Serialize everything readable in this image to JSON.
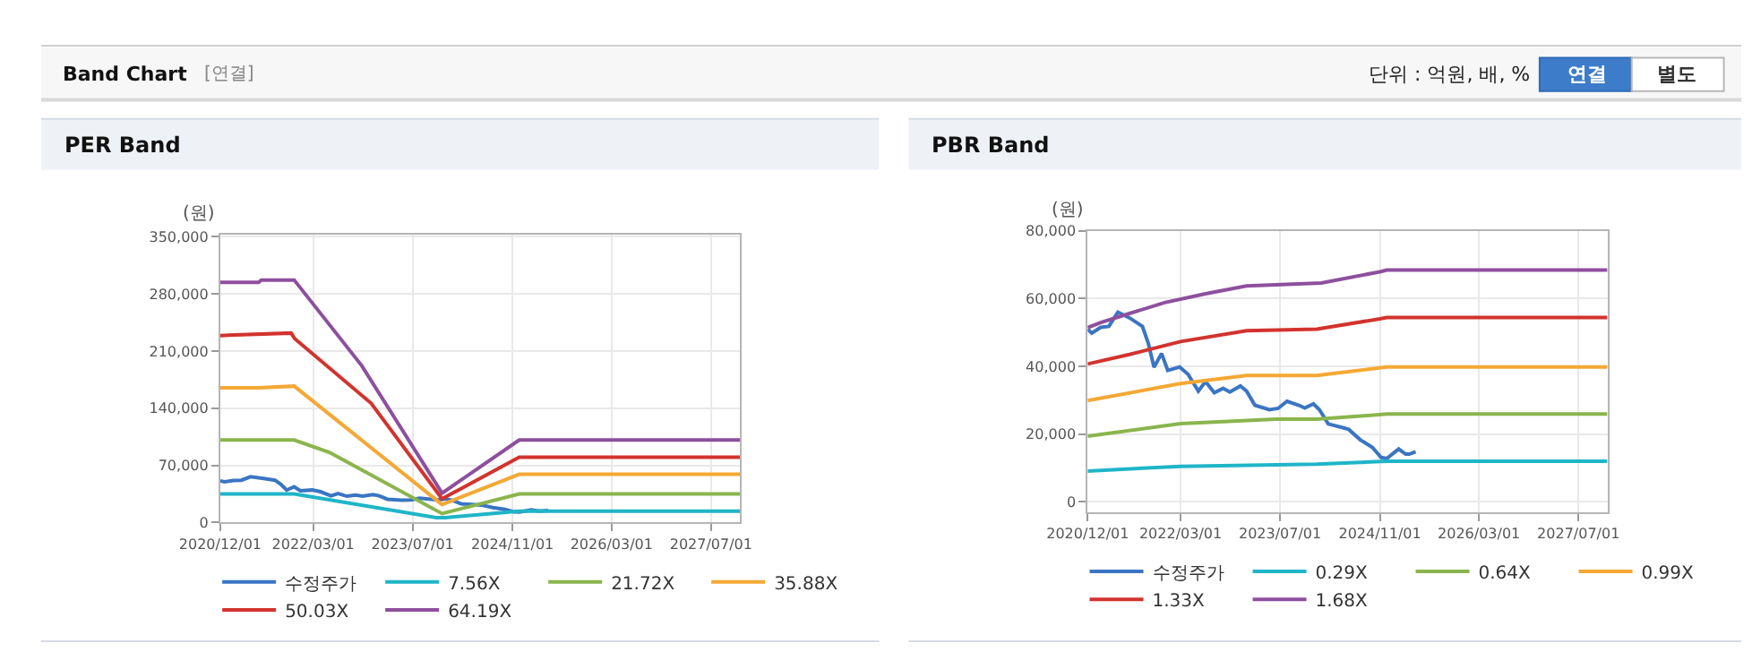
{
  "chart_data": [
    {
      "type": "other",
      "title": "Band Chart",
      "annotations": [
        "[연결]",
        "단위 : 억원, 배, %",
        "연결",
        "별도"
      ]
    },
    {
      "type": "line",
      "title": "PER Band",
      "ylabel": "(원)",
      "grid": true,
      "legend": "bottom",
      "marker": "none",
      "line_style": "solid",
      "xlim": [
        "2020-12-01",
        "2027-11-20"
      ],
      "xticks": [
        {
          "value": "2020-12-01",
          "label": "2020/12/01"
        },
        {
          "value": "2022-03-01",
          "label": "2022/03/01"
        },
        {
          "value": "2023-07-01",
          "label": "2023/07/01"
        },
        {
          "value": "2024-11-01",
          "label": "2024/11/01"
        },
        {
          "value": "2026-03-01",
          "label": "2026/03/01"
        },
        {
          "value": "2027-07-01",
          "label": "2027/07/01"
        }
      ],
      "ylim": [
        0,
        353000
      ],
      "yticks": [
        0,
        {
          "value": 70000,
          "label": "70,000"
        },
        {
          "value": 140000,
          "label": "140,000"
        },
        {
          "value": 210000,
          "label": "210,000"
        },
        {
          "value": 280000,
          "label": "280,000"
        },
        {
          "value": 350000,
          "label": "350,000"
        }
      ],
      "series": [
        {
          "name": "수정주가",
          "color": "#3a75c4",
          "x": [
            "2020-12-01",
            "2020-12-21",
            "2021-02-03",
            "2021-03-15",
            "2021-04-28",
            "2021-06-24",
            "2021-08-06",
            "2021-08-26",
            "2021-09-24",
            "2021-10-22",
            "2021-11-28",
            "2021-12-28",
            "2022-02-24",
            "2022-04-06",
            "2022-05-27",
            "2022-07-01",
            "2022-08-13",
            "2022-09-25",
            "2022-10-28",
            "2022-12-19",
            "2023-01-18",
            "2023-02-28",
            "2023-05-10",
            "2023-06-22",
            "2023-08-04",
            "2023-10-01",
            "2023-10-30",
            "2023-12-12",
            "2024-01-10",
            "2024-02-22",
            "2024-05-03",
            "2024-06-01",
            "2024-07-28",
            "2024-09-25",
            "2024-11-07",
            "2024-12-05",
            "2025-02-01",
            "2025-03-07",
            "2025-03-25",
            "2025-04-25"
          ],
          "values": [
            51000,
            49800,
            51500,
            51800,
            56000,
            54300,
            52600,
            51800,
            46800,
            39700,
            43800,
            38800,
            39800,
            37700,
            32700,
            35500,
            32200,
            33500,
            32400,
            34200,
            32700,
            28500,
            27200,
            27600,
            29700,
            28500,
            27700,
            28900,
            27200,
            23000,
            21900,
            21400,
            18300,
            16100,
            13100,
            12800,
            15600,
            14100,
            14100,
            14800
          ]
        },
        {
          "name": "7.56X",
          "color": "#1fb5c8",
          "x": [
            "2020-12-01",
            "2021-11-28",
            "2023-10-25",
            "2023-12-10",
            "2024-12-04",
            "2027-11-20"
          ],
          "values": [
            35000,
            35000,
            6000,
            6000,
            14000,
            14000
          ]
        },
        {
          "name": "21.72X",
          "color": "#8ab54d",
          "x": [
            "2020-12-01",
            "2021-11-28",
            "2022-05-19",
            "2023-11-22",
            "2024-12-04",
            "2027-11-20"
          ],
          "values": [
            101000,
            101000,
            86000,
            11000,
            35000,
            35000
          ]
        },
        {
          "name": "35.88X",
          "color": "#f5a834",
          "x": [
            "2020-12-01",
            "2021-06-07",
            "2021-11-28",
            "2023-11-22",
            "2024-12-04",
            "2027-11-20"
          ],
          "values": [
            165000,
            165000,
            167000,
            22000,
            59000,
            59000
          ]
        },
        {
          "name": "50.03X",
          "color": "#d2332e",
          "x": [
            "2020-12-01",
            "2021-11-13",
            "2021-12-01",
            "2022-12-10",
            "2023-11-22",
            "2024-12-04",
            "2027-11-20"
          ],
          "values": [
            229000,
            232000,
            225000,
            146000,
            29000,
            80000,
            80000
          ]
        },
        {
          "name": "64.19X",
          "color": "#8e4f9e",
          "x": [
            "2020-12-01",
            "2021-06-07",
            "2021-06-20",
            "2021-11-28",
            "2022-10-25",
            "2023-11-22",
            "2024-12-04",
            "2027-11-20"
          ],
          "values": [
            294000,
            294000,
            297000,
            297000,
            192000,
            36000,
            101000,
            101000
          ]
        }
      ]
    },
    {
      "type": "line",
      "title": "PBR Band",
      "ylabel": "(원)",
      "grid": true,
      "legend": "bottom",
      "marker": "none",
      "line_style": "solid",
      "xlim": [
        "2020-12-01",
        "2027-11-20"
      ],
      "xticks": [
        {
          "value": "2020-12-01",
          "label": "2020/12/01"
        },
        {
          "value": "2022-03-01",
          "label": "2022/03/01"
        },
        {
          "value": "2023-07-01",
          "label": "2023/07/01"
        },
        {
          "value": "2024-11-01",
          "label": "2024/11/01"
        },
        {
          "value": "2026-03-01",
          "label": "2026/03/01"
        },
        {
          "value": "2027-07-01",
          "label": "2027/07/01"
        }
      ],
      "ylim": [
        -3000,
        80000
      ],
      "yticks": [
        0,
        {
          "value": 20000,
          "label": "20,000"
        },
        {
          "value": 40000,
          "label": "40,000"
        },
        {
          "value": 60000,
          "label": "60,000"
        },
        {
          "value": 80000,
          "label": "80,000"
        }
      ],
      "series": [
        {
          "name": "수정주가",
          "color": "#3a75c4",
          "x": [
            "2020-12-01",
            "2020-12-21",
            "2021-02-03",
            "2021-03-15",
            "2021-04-28",
            "2021-06-24",
            "2021-08-06",
            "2021-08-26",
            "2021-09-24",
            "2021-10-22",
            "2021-11-28",
            "2021-12-28",
            "2022-02-24",
            "2022-04-06",
            "2022-05-27",
            "2022-07-01",
            "2022-08-13",
            "2022-09-25",
            "2022-10-28",
            "2022-12-19",
            "2023-01-18",
            "2023-02-28",
            "2023-05-10",
            "2023-06-22",
            "2023-08-04",
            "2023-10-01",
            "2023-10-30",
            "2023-12-12",
            "2024-01-10",
            "2024-02-22",
            "2024-05-03",
            "2024-06-01",
            "2024-07-28",
            "2024-09-25",
            "2024-11-07",
            "2024-12-05",
            "2025-02-01",
            "2025-03-07",
            "2025-03-25",
            "2025-04-25"
          ],
          "values": [
            51000,
            49800,
            51500,
            51800,
            56000,
            54300,
            52600,
            51800,
            46800,
            39700,
            43800,
            38800,
            39800,
            37700,
            32700,
            35500,
            32200,
            33500,
            32400,
            34200,
            32700,
            28500,
            27200,
            27600,
            29700,
            28500,
            27700,
            28900,
            27200,
            23000,
            21900,
            21400,
            18300,
            16100,
            13100,
            12800,
            15600,
            14100,
            14100,
            14800
          ]
        },
        {
          "name": "0.29X",
          "color": "#1fb5c8",
          "x": [
            "2020-12-01",
            "2022-03-01",
            "2023-12-28",
            "2024-12-05",
            "2027-11-20"
          ],
          "values": [
            9100,
            10500,
            11100,
            12000,
            12000
          ]
        },
        {
          "name": "0.64X",
          "color": "#8ab54d",
          "x": [
            "2020-12-01",
            "2022-03-01",
            "2023-06-10",
            "2023-12-28",
            "2024-12-05",
            "2027-11-20"
          ],
          "values": [
            19400,
            23100,
            24400,
            24400,
            25900,
            25900
          ]
        },
        {
          "name": "0.99X",
          "color": "#f5a834",
          "x": [
            "2020-12-01",
            "2022-03-01",
            "2023-01-18",
            "2023-12-28",
            "2024-12-05",
            "2027-11-20"
          ],
          "values": [
            29900,
            34900,
            37300,
            37300,
            39800,
            39800
          ]
        },
        {
          "name": "1.33X",
          "color": "#d2332e",
          "x": [
            "2020-12-01",
            "2021-06-24",
            "2022-03-01",
            "2023-01-18",
            "2023-12-28",
            "2024-11-01",
            "2024-12-05",
            "2027-11-20"
          ],
          "values": [
            40700,
            43500,
            47300,
            50500,
            51000,
            54000,
            54400,
            54400
          ]
        },
        {
          "name": "1.68X",
          "color": "#8e4f9e",
          "x": [
            "2020-12-01",
            "2021-02-03",
            "2021-06-24",
            "2021-12-13",
            "2022-07-01",
            "2023-01-18",
            "2024-01-19",
            "2024-11-01",
            "2024-12-05",
            "2027-11-20"
          ],
          "values": [
            51400,
            52900,
            55600,
            58800,
            61400,
            63700,
            64600,
            67900,
            68400,
            68400
          ]
        }
      ]
    }
  ]
}
